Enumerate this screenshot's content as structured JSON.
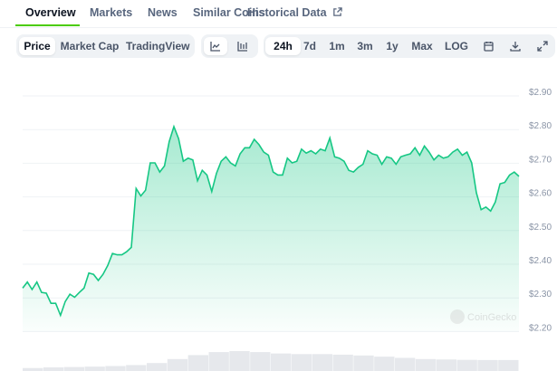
{
  "tabs": [
    {
      "label": "Overview"
    },
    {
      "label": "Markets"
    },
    {
      "label": "News"
    },
    {
      "label": "Similar Coins"
    },
    {
      "label": "Historical Data"
    }
  ],
  "chart_type_buttons": [
    {
      "label": "Price",
      "selected": true
    },
    {
      "label": "Market Cap"
    },
    {
      "label": "TradingView"
    }
  ],
  "view_icons": [
    "line-chart-icon",
    "candlestick-icon"
  ],
  "ranges": [
    {
      "label": "24h",
      "selected": true
    },
    {
      "label": "7d"
    },
    {
      "label": "1m"
    },
    {
      "label": "3m"
    },
    {
      "label": "1y"
    },
    {
      "label": "Max"
    },
    {
      "label": "LOG"
    }
  ],
  "tool_icons": [
    "calendar-icon",
    "download-icon",
    "expand-icon"
  ],
  "watermark": "CoinGecko",
  "colors": {
    "line": "#16c784",
    "accent": "#4bcc00"
  },
  "chart_data": {
    "type": "area",
    "ylim": [
      2.2,
      2.9
    ],
    "yticks": [
      "$2.90",
      "$2.80",
      "$2.70",
      "$2.60",
      "$2.50",
      "$2.40",
      "$2.30",
      "$2.20"
    ],
    "ytick_values": [
      2.9,
      2.8,
      2.7,
      2.6,
      2.5,
      2.4,
      2.3,
      2.2
    ],
    "grid": true,
    "values": [
      2.329,
      2.347,
      2.325,
      2.347,
      2.316,
      2.314,
      2.284,
      2.284,
      2.248,
      2.289,
      2.311,
      2.302,
      2.316,
      2.329,
      2.374,
      2.37,
      2.352,
      2.37,
      2.396,
      2.432,
      2.428,
      2.428,
      2.437,
      2.45,
      2.625,
      2.603,
      2.62,
      2.701,
      2.701,
      2.674,
      2.692,
      2.764,
      2.809,
      2.773,
      2.706,
      2.715,
      2.71,
      2.648,
      2.679,
      2.665,
      2.616,
      2.67,
      2.706,
      2.719,
      2.701,
      2.692,
      2.728,
      2.746,
      2.746,
      2.771,
      2.755,
      2.733,
      2.724,
      2.674,
      2.665,
      2.665,
      2.715,
      2.701,
      2.706,
      2.742,
      2.73,
      2.737,
      2.728,
      2.742,
      2.737,
      2.775,
      2.719,
      2.715,
      2.706,
      2.679,
      2.674,
      2.688,
      2.697,
      2.737,
      2.728,
      2.724,
      2.697,
      2.719,
      2.715,
      2.697,
      2.719,
      2.724,
      2.728,
      2.746,
      2.724,
      2.751,
      2.733,
      2.71,
      2.724,
      2.715,
      2.719,
      2.733,
      2.742,
      2.724,
      2.733,
      2.701,
      2.612,
      2.562,
      2.57,
      2.558,
      2.585,
      2.639,
      2.643,
      2.665,
      2.674,
      2.661
    ],
    "volume_relative": [
      0.15,
      0.18,
      0.2,
      0.22,
      0.25,
      0.3,
      0.4,
      0.6,
      0.8,
      0.95,
      1,
      0.95,
      0.88,
      0.85,
      0.85,
      0.82,
      0.78,
      0.72,
      0.66,
      0.6,
      0.58,
      0.56,
      0.55,
      0.55
    ]
  }
}
